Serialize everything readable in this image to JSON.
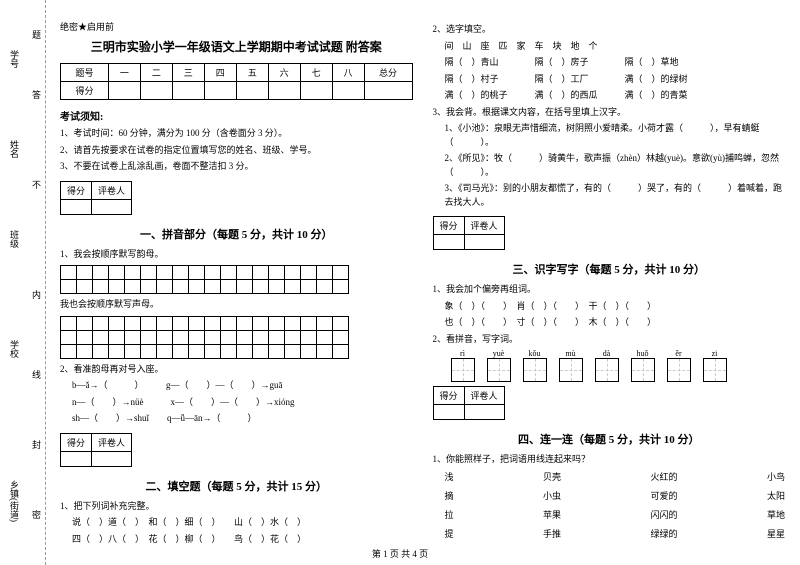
{
  "side": {
    "xuehaoshu": "学号",
    "xingming": "姓名",
    "banji": "班级",
    "xuexiao": "学校",
    "xiangzhen": "乡镇(街道)",
    "nei": "内",
    "xian": "线",
    "feng": "封",
    "mi": "密",
    "ti": "题",
    "da": "答",
    "bu": "不"
  },
  "classified": "绝密★启用前",
  "title": "三明市实验小学一年级语文上学期期中考试试题 附答案",
  "scoreHeaders": [
    "题号",
    "一",
    "二",
    "三",
    "四",
    "五",
    "六",
    "七",
    "八",
    "总分"
  ],
  "scoreRow": "得分",
  "exam": {
    "header": "考试须知:",
    "rules": [
      "1、考试时间：60 分钟，满分为 100 分（含卷面分 3 分）。",
      "2、请首先按要求在试卷的指定位置填写您的姓名、班级、学号。",
      "3、不要在试卷上乱涂乱画，卷面不整洁扣 3 分。"
    ]
  },
  "scorebox": {
    "defen": "得分",
    "pingjuan": "评卷人"
  },
  "s1": {
    "title": "一、拼音部分（每题 5 分，共计 10 分）",
    "q1": "1、我会按顺序默写韵母。",
    "q2": "我也会按顺序默写声母。",
    "q3": "2、看准韵母再对号入座。",
    "lines": [
      "b—ǎ→（　　　）　　　g—（　　）—（　　）→guā",
      "n—（　　）→nüè　　　x—（　　）—（　　）→xióng",
      "sh—（　　）→shuǐ　　q—ǖ—ān→（　　　）"
    ]
  },
  "s2": {
    "title": "二、填空题（每题 5 分，共计 15 分）",
    "q1": "1、把下列词补充完整。",
    "lines": [
      "说（　）道（　）　和（　）细（　）　　山（　）水（　）",
      "四（　）八（　）　花（　）柳（　）　　鸟（　）花（　）"
    ],
    "q2": "2、选字填空。",
    "words": "间　山　座　匹　家　车　块　地　个",
    "fills": [
      "隔（　）青山　　　　隔（　）房子　　　　隔（　）草地",
      "隔（　）村子　　　　隔（　）工厂　　　　满（　）的绿树",
      "满（　）的桃子　　　满（　）的西瓜　　　满（　）的青菜"
    ],
    "q3": "3、我会背。根据课文内容，在括号里填上汉字。",
    "texts": [
      "1、《小池》：泉眼无声惜细流，树阴照小爱晴柔。小荷才露（　　　），早有蜻蜓（　　　）。",
      "2、《所见》：牧（　　　）骑黄牛，歌声振（zhèn）林越(yuè)。意欲(yù)捕鸣蝉，忽然（　　　）。",
      "3、《司马光》：别的小朋友都慌了，有的（　　　）哭了，有的（　　　）着喊着，跑去找大人。"
    ]
  },
  "s3": {
    "title": "三、识字写字（每题 5 分，共计 10 分）",
    "q1": "1、我会加个偏旁再组词。",
    "lines1": [
      "象（　）（　　）　肖（　）（　　）　干（　）（　　）",
      "也（　）（　　）　寸（　）（　　）　木（　）（　　）"
    ],
    "q2": "2、看拼音，写字词。",
    "pinyin": [
      "rì",
      "yuè",
      "kǒu",
      "mù",
      "dà",
      "huǒ",
      "ěr",
      "zi"
    ]
  },
  "s4": {
    "title": "四、连一连（每题 5 分，共计 10 分）",
    "q1": "1、你能照样子，把词语用线连起来吗？",
    "cols": [
      [
        "浅",
        "摘",
        "拉",
        "提"
      ],
      [
        "贝壳",
        "小虫",
        "苹果",
        "手推"
      ],
      [
        "火红的",
        "可爱的",
        "闪闪的",
        "绿绿的"
      ],
      [
        "小鸟",
        "太阳",
        "草地",
        "星星"
      ]
    ]
  },
  "footer": "第 1 页 共 4 页"
}
